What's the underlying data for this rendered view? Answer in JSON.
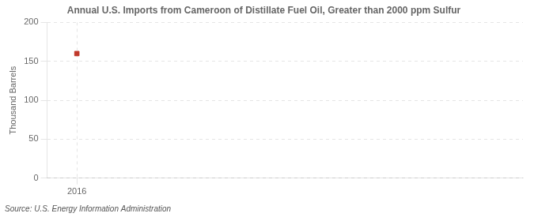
{
  "chart_data": {
    "type": "scatter",
    "title": "Annual U.S. Imports from Cameroon of Distillate Fuel Oil, Greater than 2000 ppm Sulfur",
    "ylabel": "Thousand Barrels",
    "annotation": "Source: U.S. Energy Information Administration",
    "x": [
      2016
    ],
    "values": [
      160
    ],
    "color": "#c0392b",
    "marker": "square",
    "xlim": [
      2015.6,
      2022
    ],
    "xticks": [
      2016
    ],
    "ylim": [
      0,
      200
    ],
    "yticks": [
      0,
      50,
      100,
      150,
      200
    ],
    "grid": true
  }
}
